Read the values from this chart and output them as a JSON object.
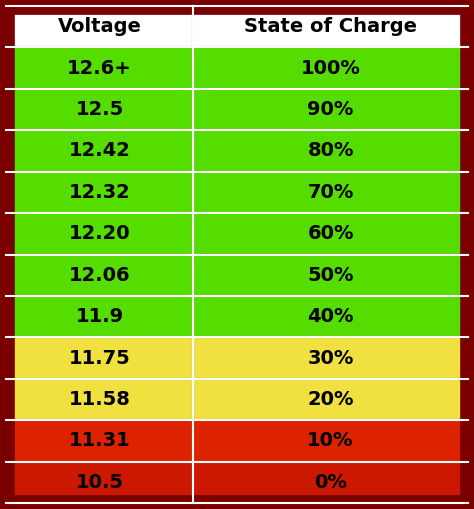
{
  "header": [
    "Voltage",
    "State of Charge"
  ],
  "rows": [
    {
      "voltage": "12.6+",
      "soc": "100%",
      "color": "#55dd00"
    },
    {
      "voltage": "12.5",
      "soc": "90%",
      "color": "#55dd00"
    },
    {
      "voltage": "12.42",
      "soc": "80%",
      "color": "#55dd00"
    },
    {
      "voltage": "12.32",
      "soc": "70%",
      "color": "#55dd00"
    },
    {
      "voltage": "12.20",
      "soc": "60%",
      "color": "#55dd00"
    },
    {
      "voltage": "12.06",
      "soc": "50%",
      "color": "#55dd00"
    },
    {
      "voltage": "11.9",
      "soc": "40%",
      "color": "#55dd00"
    },
    {
      "voltage": "11.75",
      "soc": "30%",
      "color": "#f0e040"
    },
    {
      "voltage": "11.58",
      "soc": "20%",
      "color": "#f0e040"
    },
    {
      "voltage": "11.31",
      "soc": "10%",
      "color": "#dd2200"
    },
    {
      "voltage": "10.5",
      "soc": "0%",
      "color": "#cc1800"
    }
  ],
  "header_bg": "#ffffff",
  "header_text_color": "#000000",
  "border_color": "#7a0000",
  "cell_border_color": "#aaaaaa",
  "text_color": "#000000",
  "font_size": 14,
  "header_font_size": 14,
  "col_split": 0.405,
  "fig_width": 4.74,
  "fig_height": 5.09,
  "dpi": 100
}
